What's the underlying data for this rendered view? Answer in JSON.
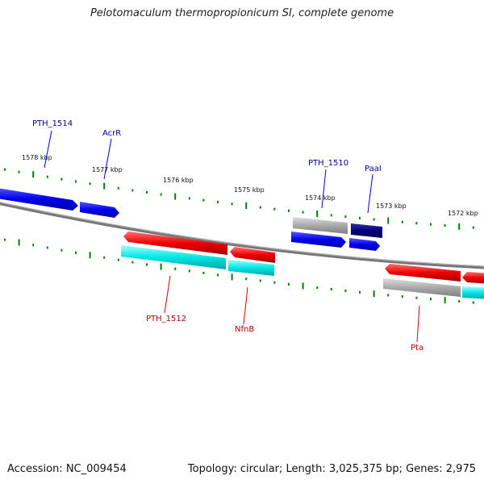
{
  "title": "Pelotomaculum thermopropionicum SI, complete genome",
  "footer": {
    "accession": "Accession: NC_009454",
    "summary": "Topology: circular; Length: 3,025,375 bp; Genes: 2,975"
  },
  "colors": {
    "forward_gene": "#0000ee",
    "reverse_gene": "#ee0000",
    "other_gene": "#aaaaaa",
    "highlight_gene": "#000080",
    "cds_track": "#00e5e5",
    "backbone": "#777777",
    "tick": "#008000",
    "forward_label": "#000099",
    "reverse_label": "#b30000"
  },
  "scale_ticks": [
    "1578 kbp",
    "1577 kbp",
    "1576 kbp",
    "1575 kbp",
    "1574 kbp",
    "1573 kbp",
    "1572 kbp"
  ],
  "gene_labels": {
    "forward": [
      "PTH_1514",
      "AcrR",
      "PTH_1510",
      "PaaI"
    ],
    "reverse": [
      "PTH_1512",
      "NfnB",
      "Pta"
    ]
  }
}
